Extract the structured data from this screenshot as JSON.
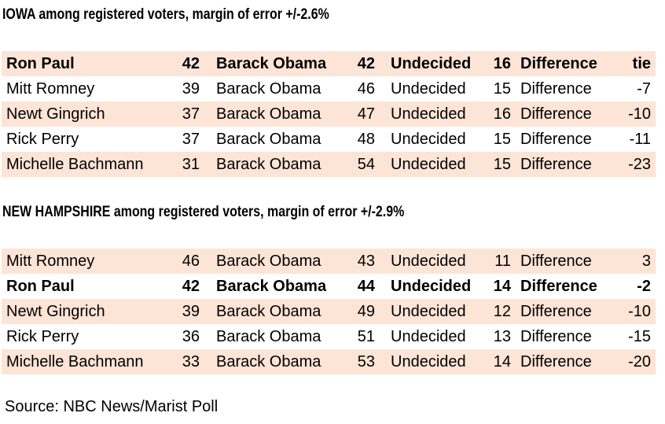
{
  "colors": {
    "row_shaded": "#fce4d6",
    "row_plain": "#ffffff",
    "text": "#000000"
  },
  "iowa": {
    "title": "IOWA among registered voters, margin of error +/-2.6%",
    "rows": [
      {
        "candidate": "Ron Paul",
        "candidate_pct": "42",
        "opponent": "Barack Obama",
        "opponent_pct": "42",
        "undecided_label": "Undecided",
        "undecided_pct": "16",
        "difference_label": "Difference",
        "difference": "tie"
      },
      {
        "candidate": "Mitt Romney",
        "candidate_pct": "39",
        "opponent": "Barack Obama",
        "opponent_pct": "46",
        "undecided_label": "Undecided",
        "undecided_pct": "15",
        "difference_label": "Difference",
        "difference": "-7"
      },
      {
        "candidate": "Newt Gingrich",
        "candidate_pct": "37",
        "opponent": "Barack Obama",
        "opponent_pct": "47",
        "undecided_label": "Undecided",
        "undecided_pct": "16",
        "difference_label": "Difference",
        "difference": "-10"
      },
      {
        "candidate": "Rick Perry",
        "candidate_pct": "37",
        "opponent": "Barack Obama",
        "opponent_pct": "48",
        "undecided_label": "Undecided",
        "undecided_pct": "15",
        "difference_label": "Difference",
        "difference": "-11"
      },
      {
        "candidate": "Michelle Bachmann",
        "candidate_pct": "31",
        "opponent": "Barack Obama",
        "opponent_pct": "54",
        "undecided_label": "Undecided",
        "undecided_pct": "15",
        "difference_label": "Difference",
        "difference": "-23"
      }
    ]
  },
  "new_hampshire": {
    "title": "NEW HAMPSHIRE among registered voters, margin of error +/-2.9%",
    "rows": [
      {
        "candidate": "Mitt Romney",
        "candidate_pct": "46",
        "opponent": "Barack Obama",
        "opponent_pct": "43",
        "undecided_label": "Undecided",
        "undecided_pct": "11",
        "difference_label": "Difference",
        "difference": "3"
      },
      {
        "candidate": "Ron Paul",
        "candidate_pct": "42",
        "opponent": "Barack Obama",
        "opponent_pct": "44",
        "undecided_label": "Undecided",
        "undecided_pct": "14",
        "difference_label": "Difference",
        "difference": "-2"
      },
      {
        "candidate": "Newt Gingrich",
        "candidate_pct": "39",
        "opponent": "Barack Obama",
        "opponent_pct": "49",
        "undecided_label": "Undecided",
        "undecided_pct": "12",
        "difference_label": "Difference",
        "difference": "-10"
      },
      {
        "candidate": "Rick Perry",
        "candidate_pct": "36",
        "opponent": "Barack Obama",
        "opponent_pct": "51",
        "undecided_label": "Undecided",
        "undecided_pct": "13",
        "difference_label": "Difference",
        "difference": "-15"
      },
      {
        "candidate": "Michelle Bachmann",
        "candidate_pct": "33",
        "opponent": "Barack Obama",
        "opponent_pct": "53",
        "undecided_label": "Undecided",
        "undecided_pct": "14",
        "difference_label": "Difference",
        "difference": "-20"
      }
    ]
  },
  "source": "Source: NBC News/Marist Poll",
  "chart_data": [
    {
      "type": "table",
      "title": "IOWA among registered voters, margin of error +/-2.6%",
      "rows": [
        [
          "Ron Paul",
          42,
          "Barack Obama",
          42,
          "Undecided",
          16,
          "Difference",
          "tie"
        ],
        [
          "Mitt Romney",
          39,
          "Barack Obama",
          46,
          "Undecided",
          15,
          "Difference",
          -7
        ],
        [
          "Newt Gingrich",
          37,
          "Barack Obama",
          47,
          "Undecided",
          16,
          "Difference",
          -10
        ],
        [
          "Rick Perry",
          37,
          "Barack Obama",
          48,
          "Undecided",
          15,
          "Difference",
          -11
        ],
        [
          "Michelle Bachmann",
          31,
          "Barack Obama",
          54,
          "Undecided",
          15,
          "Difference",
          -23
        ]
      ],
      "highlighted_row": "Ron Paul"
    },
    {
      "type": "table",
      "title": "NEW HAMPSHIRE among registered voters, margin of error +/-2.9%",
      "rows": [
        [
          "Mitt Romney",
          46,
          "Barack Obama",
          43,
          "Undecided",
          11,
          "Difference",
          3
        ],
        [
          "Ron Paul",
          42,
          "Barack Obama",
          44,
          "Undecided",
          14,
          "Difference",
          -2
        ],
        [
          "Newt Gingrich",
          39,
          "Barack Obama",
          49,
          "Undecided",
          12,
          "Difference",
          -10
        ],
        [
          "Rick Perry",
          36,
          "Barack Obama",
          51,
          "Undecided",
          13,
          "Difference",
          -15
        ],
        [
          "Michelle Bachmann",
          33,
          "Barack Obama",
          53,
          "Undecided",
          14,
          "Difference",
          -20
        ]
      ],
      "highlighted_row": "Ron Paul"
    }
  ]
}
